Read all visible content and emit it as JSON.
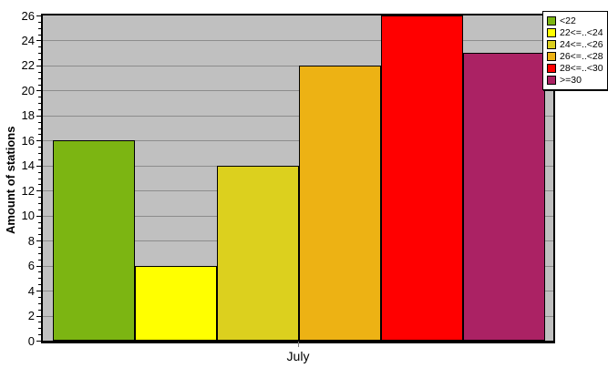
{
  "chart_data": {
    "type": "bar",
    "title": "",
    "xlabel": "July",
    "ylabel": "Amount of stations",
    "categories": [
      "July"
    ],
    "series": [
      {
        "name": "<22",
        "color": "#7CB512",
        "value": 16
      },
      {
        "name": "22<=..<24",
        "color": "#FFFF00",
        "value": 6
      },
      {
        "name": "24<=..<26",
        "color": "#DCD01E",
        "value": 14
      },
      {
        "name": "26<=..<28",
        "color": "#EDB214",
        "value": 22
      },
      {
        "name": "28<=..<30",
        "color": "#FF0000",
        "value": 26
      },
      {
        "name": ">=30",
        "color": "#AB2264",
        "value": 23
      }
    ],
    "ylim": [
      0,
      26
    ],
    "y_major_step": 2,
    "y_minor_step": 0.5,
    "y_tick_labels": [
      "0",
      "2",
      "4",
      "6",
      "8",
      "10",
      "12",
      "14",
      "16",
      "18",
      "20",
      "22",
      "24",
      "26"
    ],
    "grid": true,
    "legend_position": "top-right"
  },
  "colors": {
    "plot_background": "#C0C0C0",
    "gridline": "#8C8C8C",
    "axis": "#000000",
    "legend_background": "#FFFFFF",
    "x_tick": "#808080"
  }
}
